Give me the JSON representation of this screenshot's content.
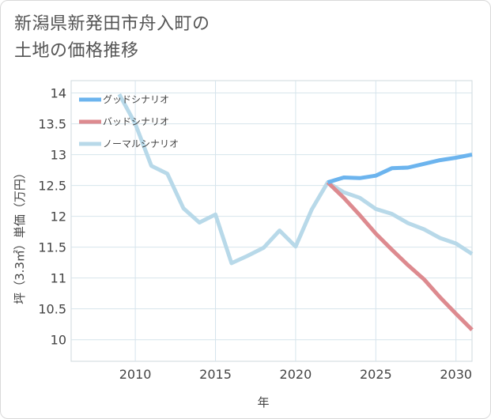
{
  "title": {
    "line1": "新潟県新発田市舟入町の",
    "line2": "土地の価格推移"
  },
  "chart_data": {
    "type": "line",
    "xlabel": "年",
    "ylabel": "坪（3.3㎡）単価（万円）",
    "xlim": [
      2006,
      2031
    ],
    "ylim": [
      9.65,
      14.2
    ],
    "x_ticks": [
      2010,
      2015,
      2020,
      2025,
      2030
    ],
    "y_ticks": [
      10,
      10.5,
      11,
      11.5,
      12,
      12.5,
      13,
      13.5,
      14
    ],
    "x_tick_labels": [
      "2010",
      "2015",
      "2020",
      "2025",
      "2030"
    ],
    "y_tick_labels": [
      "10",
      "10.5",
      "11",
      "11.5",
      "12",
      "12.5",
      "13",
      "13.5",
      "14"
    ],
    "grid": true,
    "legend_position": "top-left",
    "series": [
      {
        "name": "グッドシナリオ",
        "color": "#6cb4ee",
        "x": [
          2022,
          2023,
          2024,
          2025,
          2026,
          2027,
          2028,
          2029,
          2030,
          2031
        ],
        "y": [
          12.55,
          12.63,
          12.62,
          12.66,
          12.78,
          12.79,
          12.85,
          12.91,
          12.95,
          13.0
        ]
      },
      {
        "name": "バッドシナリオ",
        "color": "#dd8a8f",
        "x": [
          2022,
          2023,
          2024,
          2025,
          2026,
          2027,
          2028,
          2029,
          2030,
          2031
        ],
        "y": [
          12.55,
          12.3,
          12.02,
          11.72,
          11.46,
          11.21,
          10.98,
          10.69,
          10.42,
          10.16
        ]
      },
      {
        "name": "ノーマルシナリオ",
        "color": "#b8d9e9",
        "x": [
          2009,
          2010,
          2011,
          2012,
          2013,
          2014,
          2015,
          2016,
          2017,
          2018,
          2019,
          2020,
          2021,
          2022,
          2023,
          2024,
          2025,
          2026,
          2027,
          2028,
          2029,
          2030,
          2031
        ],
        "y": [
          13.98,
          13.5,
          12.82,
          12.69,
          12.13,
          11.9,
          12.03,
          11.24,
          11.36,
          11.49,
          11.77,
          11.51,
          12.11,
          12.55,
          12.39,
          12.3,
          12.12,
          12.04,
          11.89,
          11.79,
          11.65,
          11.56,
          11.39
        ]
      }
    ]
  }
}
